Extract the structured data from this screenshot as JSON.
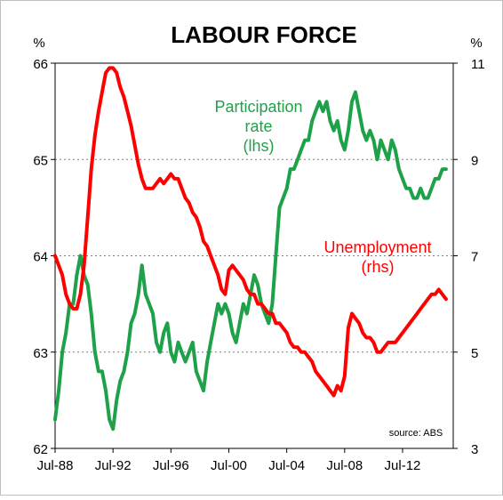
{
  "chart_data": {
    "type": "line",
    "title": "LABOUR FORCE",
    "left_axis": {
      "unit": "%",
      "ylim": [
        62,
        66
      ],
      "ticks": [
        62,
        63,
        64,
        65,
        66
      ]
    },
    "right_axis": {
      "unit": "%",
      "ylim": [
        3,
        11
      ],
      "ticks": [
        3,
        5,
        7,
        9,
        11
      ]
    },
    "xlim": [
      1988.5,
      2016.0
    ],
    "x_ticks": [
      "Jul-88",
      "Jul-92",
      "Jul-96",
      "Jul-00",
      "Jul-04",
      "Jul-08",
      "Jul-12"
    ],
    "grid": "horizontal dotted",
    "source_note": "source: ABS",
    "series": [
      {
        "name": "Participation rate",
        "axis_note": "(lhs)",
        "label_lines": [
          "Participation",
          "rate",
          "(lhs)"
        ],
        "axis": "left",
        "color": "#1FA14A",
        "x": [
          1988.5,
          1988.75,
          1989.0,
          1989.25,
          1989.5,
          1989.75,
          1990.0,
          1990.25,
          1990.5,
          1990.75,
          1991.0,
          1991.25,
          1991.5,
          1991.75,
          1992.0,
          1992.25,
          1992.5,
          1992.75,
          1993.0,
          1993.25,
          1993.5,
          1993.75,
          1994.0,
          1994.25,
          1994.5,
          1994.75,
          1995.0,
          1995.25,
          1995.5,
          1995.75,
          1996.0,
          1996.25,
          1996.5,
          1996.75,
          1997.0,
          1997.25,
          1997.5,
          1997.75,
          1998.0,
          1998.25,
          1998.5,
          1998.75,
          1999.0,
          1999.25,
          1999.5,
          1999.75,
          2000.0,
          2000.25,
          2000.5,
          2000.75,
          2001.0,
          2001.25,
          2001.5,
          2001.75,
          2002.0,
          2002.25,
          2002.5,
          2002.75,
          2003.0,
          2003.25,
          2003.5,
          2003.75,
          2004.0,
          2004.25,
          2004.5,
          2004.75,
          2005.0,
          2005.25,
          2005.5,
          2005.75,
          2006.0,
          2006.25,
          2006.5,
          2006.75,
          2007.0,
          2007.25,
          2007.5,
          2007.75,
          2008.0,
          2008.25,
          2008.5,
          2008.75,
          2009.0,
          2009.25,
          2009.5,
          2009.75,
          2010.0,
          2010.25,
          2010.5,
          2010.75,
          2011.0,
          2011.25,
          2011.5,
          2011.75,
          2012.0,
          2012.25,
          2012.5,
          2012.75,
          2013.0,
          2013.25,
          2013.5,
          2013.75,
          2014.0,
          2014.25,
          2014.5,
          2014.75,
          2015.0,
          2015.25,
          2015.5
        ],
        "values": [
          62.3,
          62.6,
          63.0,
          63.2,
          63.5,
          63.5,
          63.8,
          64.0,
          63.8,
          63.7,
          63.4,
          63.0,
          62.8,
          62.8,
          62.6,
          62.3,
          62.2,
          62.5,
          62.7,
          62.8,
          63.0,
          63.3,
          63.4,
          63.6,
          63.9,
          63.6,
          63.5,
          63.4,
          63.1,
          63.0,
          63.2,
          63.3,
          63.0,
          62.9,
          63.1,
          63.0,
          62.9,
          63.0,
          63.1,
          62.8,
          62.7,
          62.6,
          62.9,
          63.1,
          63.3,
          63.5,
          63.4,
          63.5,
          63.4,
          63.2,
          63.1,
          63.3,
          63.5,
          63.4,
          63.6,
          63.8,
          63.7,
          63.5,
          63.4,
          63.3,
          63.5,
          64.0,
          64.5,
          64.6,
          64.7,
          64.9,
          64.9,
          65.0,
          65.1,
          65.2,
          65.2,
          65.4,
          65.5,
          65.6,
          65.5,
          65.6,
          65.4,
          65.3,
          65.4,
          65.2,
          65.1,
          65.3,
          65.6,
          65.7,
          65.5,
          65.3,
          65.2,
          65.3,
          65.2,
          65.0,
          65.2,
          65.1,
          65.0,
          65.2,
          65.1,
          64.9,
          64.8,
          64.7,
          64.7,
          64.6,
          64.6,
          64.7,
          64.6,
          64.6,
          64.7,
          64.8,
          64.8,
          64.9,
          64.9
        ]
      },
      {
        "name": "Unemployment",
        "axis_note": "(rhs)",
        "label_lines": [
          "Unemployment",
          "(rhs)"
        ],
        "axis": "right",
        "color": "#FF0000",
        "x": [
          1988.5,
          1988.75,
          1989.0,
          1989.25,
          1989.5,
          1989.75,
          1990.0,
          1990.25,
          1990.5,
          1990.75,
          1991.0,
          1991.25,
          1991.5,
          1991.75,
          1992.0,
          1992.25,
          1992.5,
          1992.75,
          1993.0,
          1993.25,
          1993.5,
          1993.75,
          1994.0,
          1994.25,
          1994.5,
          1994.75,
          1995.0,
          1995.25,
          1995.5,
          1995.75,
          1996.0,
          1996.25,
          1996.5,
          1996.75,
          1997.0,
          1997.25,
          1997.5,
          1997.75,
          1998.0,
          1998.25,
          1998.5,
          1998.75,
          1999.0,
          1999.25,
          1999.5,
          1999.75,
          2000.0,
          2000.25,
          2000.5,
          2000.75,
          2001.0,
          2001.25,
          2001.5,
          2001.75,
          2002.0,
          2002.25,
          2002.5,
          2002.75,
          2003.0,
          2003.25,
          2003.5,
          2003.75,
          2004.0,
          2004.25,
          2004.5,
          2004.75,
          2005.0,
          2005.25,
          2005.5,
          2005.75,
          2006.0,
          2006.25,
          2006.5,
          2006.75,
          2007.0,
          2007.25,
          2007.5,
          2007.75,
          2008.0,
          2008.25,
          2008.5,
          2008.75,
          2009.0,
          2009.25,
          2009.5,
          2009.75,
          2010.0,
          2010.25,
          2010.5,
          2010.75,
          2011.0,
          2011.25,
          2011.5,
          2011.75,
          2012.0,
          2012.25,
          2012.5,
          2012.75,
          2013.0,
          2013.25,
          2013.5,
          2013.75,
          2014.0,
          2014.25,
          2014.5,
          2014.75,
          2015.0,
          2015.25,
          2015.5
        ],
        "values": [
          7.0,
          6.8,
          6.6,
          6.2,
          6.0,
          5.9,
          5.9,
          6.2,
          6.8,
          7.8,
          8.8,
          9.5,
          10.0,
          10.4,
          10.8,
          10.9,
          10.9,
          10.8,
          10.5,
          10.3,
          10.0,
          9.7,
          9.3,
          8.9,
          8.6,
          8.4,
          8.4,
          8.4,
          8.5,
          8.6,
          8.5,
          8.6,
          8.7,
          8.6,
          8.6,
          8.4,
          8.2,
          8.1,
          7.9,
          7.8,
          7.6,
          7.3,
          7.2,
          7.0,
          6.8,
          6.6,
          6.3,
          6.2,
          6.7,
          6.8,
          6.7,
          6.6,
          6.5,
          6.3,
          6.2,
          6.2,
          6.0,
          6.0,
          5.9,
          5.8,
          5.8,
          5.6,
          5.6,
          5.5,
          5.4,
          5.2,
          5.1,
          5.1,
          5.0,
          5.0,
          4.9,
          4.8,
          4.6,
          4.5,
          4.4,
          4.3,
          4.2,
          4.1,
          4.3,
          4.2,
          4.5,
          5.5,
          5.8,
          5.7,
          5.6,
          5.4,
          5.3,
          5.3,
          5.2,
          5.0,
          5.0,
          5.1,
          5.2,
          5.2,
          5.2,
          5.3,
          5.4,
          5.5,
          5.6,
          5.7,
          5.8,
          5.9,
          6.0,
          6.1,
          6.2,
          6.2,
          6.3,
          6.2,
          6.1
        ]
      }
    ]
  }
}
